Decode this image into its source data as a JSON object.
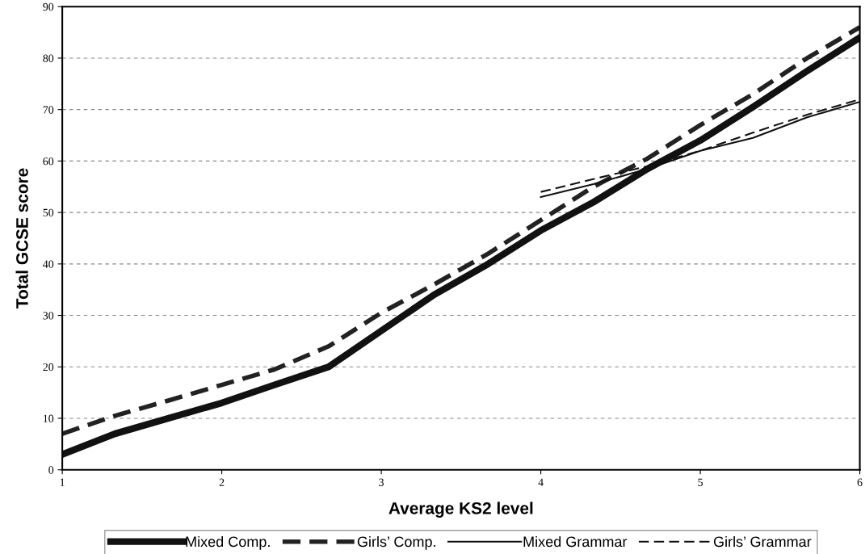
{
  "chart_data": {
    "type": "line",
    "xlabel": "Average KS2 level",
    "ylabel": "Total GCSE score",
    "xlim": [
      1,
      6
    ],
    "xticks": [
      1,
      2,
      3,
      4,
      5,
      6
    ],
    "ylim": [
      0,
      90
    ],
    "yticks": [
      0,
      10,
      20,
      30,
      40,
      50,
      60,
      70,
      80,
      90
    ],
    "grid": "y",
    "legend": "bottom",
    "marker": "none",
    "series": [
      {
        "name": "Mixed Comp.",
        "color": "#111111",
        "line_style": "solid",
        "x": [
          1,
          1.33,
          2,
          2.33,
          2.67,
          3,
          3.33,
          3.67,
          4,
          4.33,
          4.67,
          5,
          5.33,
          5.67,
          6
        ],
        "values": [
          3,
          7,
          13,
          16.5,
          20,
          27,
          34,
          40,
          46.5,
          52,
          58.5,
          64,
          70.5,
          77.5,
          84
        ]
      },
      {
        "name": "Girls’ Comp.",
        "color": "#222222",
        "line_style": "dashed",
        "x": [
          1,
          1.33,
          1.67,
          2,
          2.33,
          2.67,
          3,
          3.33,
          3.67,
          4,
          4.33,
          4.67,
          5,
          5.33,
          5.67,
          6
        ],
        "values": [
          7,
          10.5,
          13.5,
          16.5,
          19.5,
          24,
          30.5,
          36,
          42,
          48.5,
          55,
          60.5,
          67,
          73,
          80,
          86
        ]
      },
      {
        "name": "Mixed Grammar",
        "color": "#111111",
        "line_style": "solid",
        "x": [
          4,
          4.33,
          4.67,
          5,
          5.33,
          5.67,
          6
        ],
        "values": [
          53,
          55.5,
          58.5,
          62,
          64.5,
          68.5,
          71.5
        ]
      },
      {
        "name": "Girls’ Grammar",
        "color": "#111111",
        "line_style": "dashed",
        "x": [
          4,
          4.33,
          4.67,
          5,
          5.33,
          5.67,
          6
        ],
        "values": [
          54,
          56.5,
          59,
          62,
          65.5,
          69,
          72
        ]
      }
    ]
  }
}
